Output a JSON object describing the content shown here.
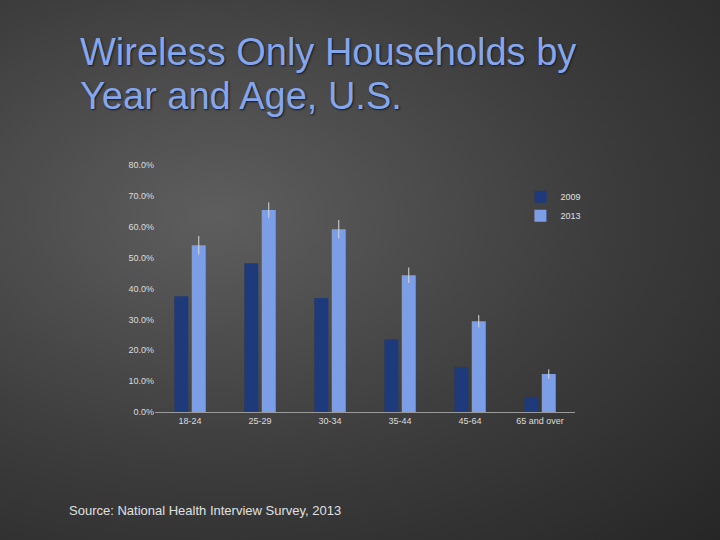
{
  "chart_data": {
    "type": "bar",
    "title": "Wireless Only Households by Year and Age, U.S.",
    "categories": [
      "18-24",
      "25-29",
      "30-34",
      "35-44",
      "45-64",
      "65 and over"
    ],
    "series": [
      {
        "name": "2009",
        "color": "#1f3a7a",
        "values": [
          37.5,
          48.2,
          36.9,
          23.6,
          14.6,
          4.9
        ]
      },
      {
        "name": "2013",
        "color": "#7b9ee6",
        "values": [
          54.0,
          65.4,
          59.2,
          44.3,
          29.4,
          12.3
        ],
        "errors": [
          3.0,
          2.5,
          3.0,
          2.5,
          2.0,
          1.5
        ]
      }
    ],
    "ylim": [
      0,
      80
    ],
    "yticks": [
      {
        "value": 0,
        "label": "0.0%"
      },
      {
        "value": 10,
        "label": "10.0%"
      },
      {
        "value": 20,
        "label": "20.0%"
      },
      {
        "value": 30,
        "label": "30.0%"
      },
      {
        "value": 40,
        "label": "40.0%"
      },
      {
        "value": 50,
        "label": "50.0%"
      },
      {
        "value": 60,
        "label": "60.0%"
      },
      {
        "value": 70,
        "label": "70.0%"
      },
      {
        "value": 80,
        "label": "80.0%"
      }
    ],
    "grid": false,
    "legend": "upper right",
    "annotations": [
      "Source: National Health Interview Survey, 2013"
    ]
  }
}
